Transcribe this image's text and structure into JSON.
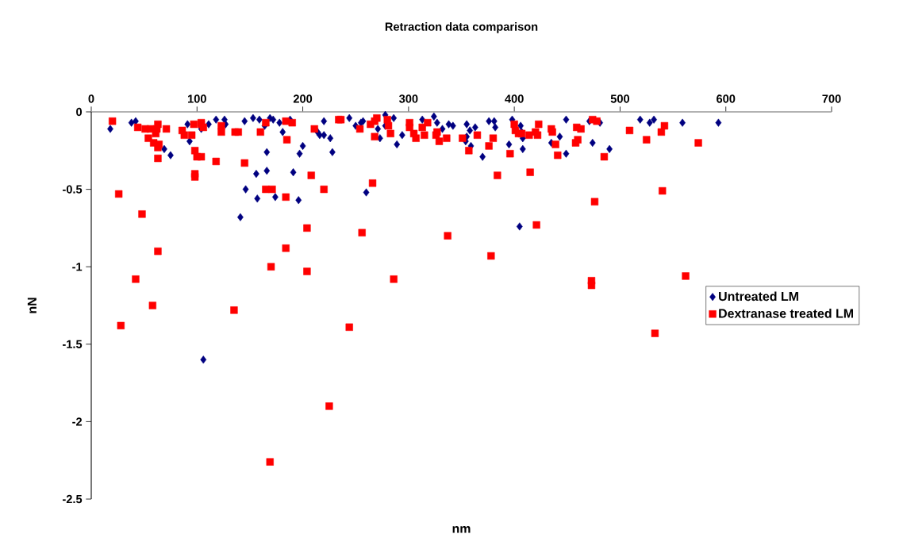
{
  "chart_data": {
    "type": "scatter",
    "title": "Retraction data comparison",
    "xlabel": "nm",
    "ylabel": "nN",
    "xlim": [
      0,
      700
    ],
    "ylim": [
      -2.5,
      0
    ],
    "xticks": [
      0,
      100,
      200,
      300,
      400,
      500,
      600,
      700
    ],
    "yticks": [
      -2.5,
      -2,
      -1.5,
      -1,
      -0.5,
      0
    ],
    "grid": false,
    "legend": "right",
    "series": [
      {
        "name": "Untreated LM",
        "color": "#000080",
        "marker": "diamond",
        "x": [
          18,
          38,
          42,
          91,
          93,
          104,
          111,
          118,
          126,
          127,
          145,
          153,
          159,
          164,
          169,
          172,
          178,
          181,
          188,
          200,
          197,
          166,
          156,
          166,
          191,
          146,
          157,
          174,
          196,
          141,
          214,
          216,
          220,
          220,
          226,
          228,
          69,
          75,
          244,
          250,
          255,
          257,
          271,
          273,
          278,
          278,
          286,
          294,
          289,
          313,
          324,
          327,
          332,
          338,
          342,
          355,
          358,
          355,
          354,
          359,
          363,
          370,
          376,
          381,
          382,
          395,
          398,
          406,
          407,
          408,
          408,
          443,
          449,
          449,
          435,
          260,
          405,
          471,
          481,
          474,
          490,
          519,
          528,
          532,
          559,
          593,
          106
        ],
        "values": [
          -0.11,
          -0.07,
          -0.06,
          -0.08,
          -0.19,
          -0.11,
          -0.08,
          -0.05,
          -0.05,
          -0.08,
          -0.06,
          -0.04,
          -0.05,
          -0.09,
          -0.04,
          -0.05,
          -0.07,
          -0.13,
          -0.05,
          -0.22,
          -0.27,
          -0.26,
          -0.4,
          -0.38,
          -0.39,
          -0.5,
          -0.56,
          -0.55,
          -0.57,
          -0.68,
          -0.13,
          -0.15,
          -0.15,
          -0.06,
          -0.17,
          -0.26,
          -0.24,
          -0.28,
          -0.04,
          -0.09,
          -0.07,
          -0.06,
          -0.11,
          -0.17,
          -0.02,
          -0.09,
          -0.04,
          -0.15,
          -0.21,
          -0.05,
          -0.03,
          -0.07,
          -0.11,
          -0.08,
          -0.09,
          -0.08,
          -0.12,
          -0.16,
          -0.19,
          -0.22,
          -0.1,
          -0.29,
          -0.06,
          -0.06,
          -0.1,
          -0.21,
          -0.05,
          -0.09,
          -0.13,
          -0.17,
          -0.24,
          -0.16,
          -0.05,
          -0.27,
          -0.2,
          -0.52,
          -0.74,
          -0.06,
          -0.07,
          -0.2,
          -0.24,
          -0.05,
          -0.07,
          -0.05,
          -0.07,
          -0.07,
          -1.6
        ]
      },
      {
        "name": "Dextranase treated LM",
        "color": "#ff0000",
        "marker": "square",
        "x": [
          20,
          44,
          51,
          56,
          63,
          62,
          61,
          71,
          54,
          59,
          63,
          64,
          63,
          86,
          88,
          95,
          97,
          104,
          104,
          106,
          98,
          100,
          104,
          98,
          98,
          123,
          123,
          118,
          136,
          139,
          145,
          160,
          165,
          184,
          190,
          185,
          208,
          165,
          171,
          184,
          220,
          211,
          234,
          26,
          48,
          204,
          236,
          254,
          264,
          268,
          270,
          280,
          281,
          283,
          268,
          266,
          301,
          301,
          305,
          307,
          313,
          318,
          315,
          327,
          326,
          329,
          336,
          351,
          357,
          365,
          376,
          380,
          384,
          396,
          400,
          401,
          404,
          407,
          414,
          420,
          422,
          423,
          415,
          435,
          436,
          439,
          441,
          459,
          463,
          460,
          458,
          421,
          256,
          337,
          474,
          478,
          485,
          509,
          525,
          539,
          542,
          574,
          540,
          476,
          63,
          42,
          58,
          28,
          135,
          184,
          170,
          204,
          286,
          244,
          225,
          169,
          378,
          473,
          473,
          562,
          533
        ],
        "values": [
          -0.06,
          -0.1,
          -0.11,
          -0.11,
          -0.08,
          -0.11,
          -0.14,
          -0.11,
          -0.17,
          -0.2,
          -0.23,
          -0.21,
          -0.3,
          -0.12,
          -0.15,
          -0.15,
          -0.08,
          -0.07,
          -0.08,
          -0.1,
          -0.25,
          -0.29,
          -0.29,
          -0.4,
          -0.42,
          -0.09,
          -0.13,
          -0.32,
          -0.13,
          -0.13,
          -0.33,
          -0.13,
          -0.07,
          -0.06,
          -0.07,
          -0.18,
          -0.41,
          -0.5,
          -0.5,
          -0.55,
          -0.5,
          -0.11,
          -0.05,
          -0.53,
          -0.66,
          -0.75,
          -0.05,
          -0.11,
          -0.08,
          -0.06,
          -0.04,
          -0.05,
          -0.09,
          -0.14,
          -0.16,
          -0.46,
          -0.07,
          -0.1,
          -0.14,
          -0.17,
          -0.1,
          -0.07,
          -0.15,
          -0.13,
          -0.15,
          -0.19,
          -0.17,
          -0.17,
          -0.25,
          -0.15,
          -0.22,
          -0.17,
          -0.41,
          -0.27,
          -0.08,
          -0.12,
          -0.14,
          -0.14,
          -0.15,
          -0.13,
          -0.15,
          -0.08,
          -0.39,
          -0.11,
          -0.13,
          -0.21,
          -0.28,
          -0.1,
          -0.11,
          -0.18,
          -0.2,
          -0.73,
          -0.78,
          -0.8,
          -0.05,
          -0.06,
          -0.29,
          -0.12,
          -0.18,
          -0.13,
          -0.09,
          -0.2,
          -0.51,
          -0.58,
          -0.9,
          -1.08,
          -1.25,
          -1.38,
          -1.28,
          -0.88,
          -1.0,
          -1.03,
          -1.08,
          -1.39,
          -1.9,
          -2.26,
          -0.93,
          -1.09,
          -1.12,
          -1.06,
          -1.43
        ]
      }
    ]
  }
}
